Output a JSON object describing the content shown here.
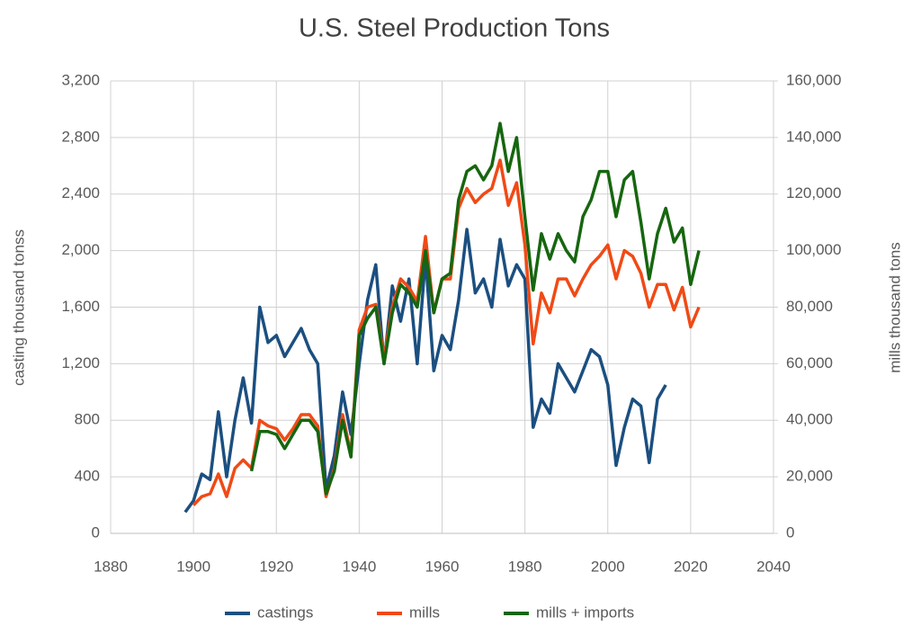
{
  "chart_data": {
    "type": "line",
    "title": "U.S. Steel Production Tons",
    "y_label": "casting thousand tonss",
    "y2_label": "mills thousand tons",
    "x": [
      1898,
      1900,
      1902,
      1904,
      1906,
      1908,
      1910,
      1912,
      1914,
      1916,
      1918,
      1920,
      1922,
      1924,
      1926,
      1928,
      1930,
      1932,
      1934,
      1936,
      1938,
      1940,
      1942,
      1944,
      1946,
      1948,
      1950,
      1952,
      1954,
      1956,
      1958,
      1960,
      1962,
      1964,
      1966,
      1968,
      1970,
      1972,
      1974,
      1976,
      1978,
      1980,
      1982,
      1984,
      1986,
      1988,
      1990,
      1992,
      1994,
      1996,
      1998,
      2000,
      2002,
      2004,
      2006,
      2008,
      2010,
      2012,
      2014,
      2016,
      2018,
      2020,
      2022
    ],
    "series": [
      {
        "name": "castings",
        "color": "#1b4f80",
        "values": [
          150,
          230,
          420,
          380,
          860,
          400,
          800,
          1100,
          780,
          1600,
          1350,
          1400,
          1250,
          1350,
          1450,
          1300,
          1200,
          310,
          550,
          1000,
          700,
          1200,
          1650,
          1900,
          1200,
          1750,
          1500,
          1800,
          1200,
          1950,
          1150,
          1400,
          1300,
          1650,
          2150,
          1700,
          1800,
          1600,
          2080,
          1750,
          1900,
          1800,
          750,
          950,
          850,
          1200,
          1100,
          1000,
          1150,
          1300,
          1250,
          1050,
          480,
          750,
          950,
          900,
          500,
          950,
          1050,
          null,
          null,
          null,
          null
        ]
      },
      {
        "name": "mills",
        "color": "#f04a16",
        "axis": "y2",
        "values": [
          null,
          10000,
          13000,
          14000,
          21000,
          13000,
          23000,
          26000,
          23000,
          40000,
          38000,
          37000,
          33000,
          37000,
          42000,
          42000,
          38000,
          13000,
          23000,
          42000,
          28000,
          72000,
          80000,
          81000,
          62000,
          80000,
          90000,
          87000,
          82000,
          105000,
          78000,
          90000,
          90000,
          115000,
          122000,
          117000,
          120000,
          122000,
          132000,
          116000,
          124000,
          102000,
          67000,
          85000,
          78000,
          90000,
          90000,
          84000,
          90000,
          95000,
          98000,
          102000,
          90000,
          100000,
          98000,
          92000,
          80000,
          88000,
          88000,
          79000,
          87000,
          73000,
          80000
        ]
      },
      {
        "name": "mills + imports",
        "color": "#16660f",
        "axis": "y2",
        "values": [
          null,
          null,
          null,
          null,
          null,
          null,
          null,
          null,
          22000,
          36000,
          36000,
          35000,
          30000,
          35000,
          40000,
          40000,
          36000,
          14000,
          22000,
          40000,
          27000,
          70000,
          76000,
          80000,
          60000,
          78000,
          88000,
          85000,
          80000,
          100000,
          78000,
          90000,
          92000,
          118000,
          128000,
          130000,
          125000,
          130000,
          145000,
          128000,
          140000,
          112000,
          86000,
          106000,
          97000,
          106000,
          100000,
          96000,
          112000,
          118000,
          128000,
          128000,
          112000,
          125000,
          128000,
          110000,
          90000,
          106000,
          115000,
          103000,
          108000,
          88000,
          100000
        ]
      }
    ],
    "xlim": [
      1880,
      2040
    ],
    "xticks": [
      1880,
      1900,
      1920,
      1940,
      1960,
      1980,
      2000,
      2020,
      2040
    ],
    "ylim": [
      0,
      3200
    ],
    "yticks": [
      0,
      400,
      800,
      {
        "value": 1200,
        "label": "1,200"
      },
      {
        "value": 1600,
        "label": "1,600"
      },
      {
        "value": 2000,
        "label": "2,000"
      },
      {
        "value": 2400,
        "label": "2,400"
      },
      {
        "value": 2800,
        "label": "2,800"
      },
      {
        "value": 3200,
        "label": "3,200"
      }
    ],
    "y2lim": [
      0,
      160000
    ],
    "y2ticks": [
      0,
      {
        "value": 20000,
        "label": "20,000"
      },
      {
        "value": 40000,
        "label": "40,000"
      },
      {
        "value": 60000,
        "label": "60,000"
      },
      {
        "value": 80000,
        "label": "80,000"
      },
      {
        "value": 100000,
        "label": "100,000"
      },
      {
        "value": 120000,
        "label": "120,000"
      },
      {
        "value": 140000,
        "label": "140,000"
      },
      {
        "value": 160000,
        "label": "160,000"
      }
    ],
    "grid": true,
    "legend": "bottom"
  }
}
